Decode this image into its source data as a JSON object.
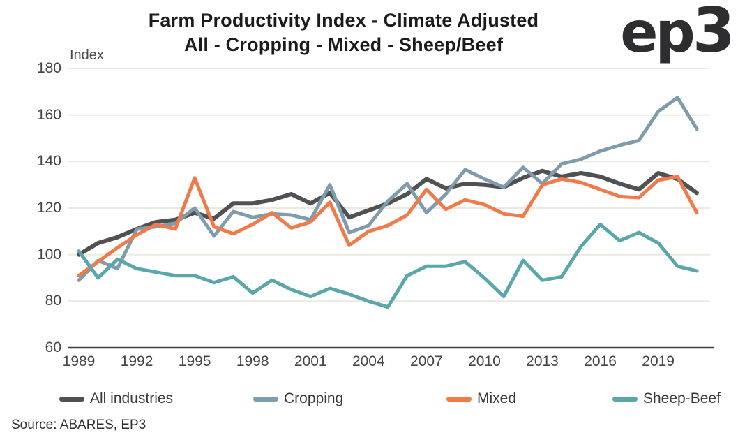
{
  "header": {
    "title_line1": "Farm Productivity Index - Climate Adjusted",
    "title_line2": "All - Cropping - Mixed - Sheep/Beef",
    "logo_ep": "ep",
    "logo_3": "3"
  },
  "source": "Source: ABARES, EP3",
  "chart_data": {
    "type": "line",
    "title": "Farm Productivity Index - Climate Adjusted\nAll - Cropping - Mixed - Sheep/Beef",
    "xlabel": "",
    "ylabel": "Index",
    "ylim": [
      60,
      180
    ],
    "y_ticks": [
      60,
      80,
      100,
      120,
      140,
      160,
      180
    ],
    "x_ticks": [
      1989,
      1992,
      1995,
      1998,
      2001,
      2004,
      2007,
      2010,
      2013,
      2016,
      2019
    ],
    "grid": "horizontal-only",
    "legend_position": "bottom",
    "background": "#ffffff",
    "gridline_color": "#ece9e0",
    "axis_color": "#3f4041",
    "x": [
      1989,
      1990,
      1991,
      1992,
      1993,
      1994,
      1995,
      1996,
      1997,
      1998,
      1999,
      2000,
      2001,
      2002,
      2003,
      2004,
      2005,
      2006,
      2007,
      2008,
      2009,
      2010,
      2011,
      2012,
      2013,
      2014,
      2015,
      2016,
      2017,
      2018,
      2019,
      2020,
      2021
    ],
    "series": [
      {
        "id": "all-industries",
        "name": "All industries",
        "color": "#505153",
        "width": 6,
        "values": [
          100,
          105,
          107.5,
          111,
          114,
          115,
          118,
          115.5,
          122,
          122,
          123.5,
          126,
          122,
          126.5,
          116,
          119,
          122,
          126,
          132.5,
          128.5,
          130.5,
          130,
          129,
          133,
          136,
          133.5,
          135,
          133.5,
          130.5,
          128,
          135,
          132.5,
          126.5
        ]
      },
      {
        "id": "cropping",
        "name": "Cropping",
        "color": "#7f9cad",
        "width": 5,
        "values": [
          89,
          97.5,
          94,
          111,
          112,
          113.5,
          120,
          108,
          118.5,
          116,
          117.5,
          117,
          115,
          130,
          109.5,
          112.5,
          123,
          130.5,
          118,
          126,
          136.5,
          132.5,
          129,
          137.5,
          130.5,
          139,
          141,
          144.5,
          147,
          149,
          161.5,
          167.5,
          154
        ]
      },
      {
        "id": "mixed",
        "name": "Mixed",
        "color": "#f07a4a",
        "width": 5,
        "values": [
          91,
          97,
          103,
          108.5,
          113,
          111,
          133,
          112,
          109,
          113,
          118,
          111.5,
          114,
          122.5,
          104,
          110,
          112.5,
          117,
          128,
          119.5,
          123.5,
          121.5,
          117.5,
          116.5,
          130,
          132.5,
          131,
          128,
          125,
          124.5,
          132,
          133.5,
          118
        ]
      },
      {
        "id": "sheep-beef",
        "name": "Sheep-Beef",
        "color": "#59a7ab",
        "width": 5,
        "values": [
          101.5,
          90,
          98,
          94,
          92.5,
          91,
          91,
          88,
          90.5,
          83.5,
          89,
          85,
          82,
          85.5,
          83,
          80,
          77.5,
          91,
          95,
          95,
          97,
          90,
          82,
          97.5,
          89,
          90.5,
          103.5,
          113,
          106,
          109.5,
          105,
          95,
          93
        ]
      }
    ]
  }
}
